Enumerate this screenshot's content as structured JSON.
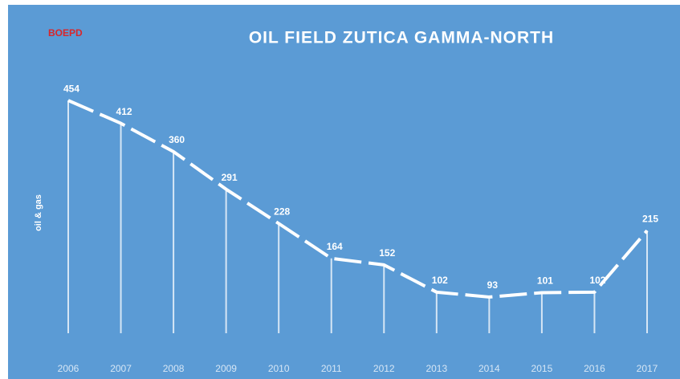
{
  "chart_data": {
    "type": "line",
    "title": "OIL FIELD ZUTICA GAMMA-NORTH",
    "subtitle": "BOEPD",
    "y_label": "oil & gas",
    "categories": [
      "2006",
      "2007",
      "2008",
      "2009",
      "2010",
      "2011",
      "2012",
      "2013",
      "2014",
      "2015",
      "2016",
      "2017"
    ],
    "values": [
      454,
      412,
      360,
      291,
      228,
      164,
      152,
      102,
      93,
      101,
      102,
      215
    ],
    "color": "#ffffff",
    "ylim": [
      0,
      550
    ],
    "grid": false
  }
}
